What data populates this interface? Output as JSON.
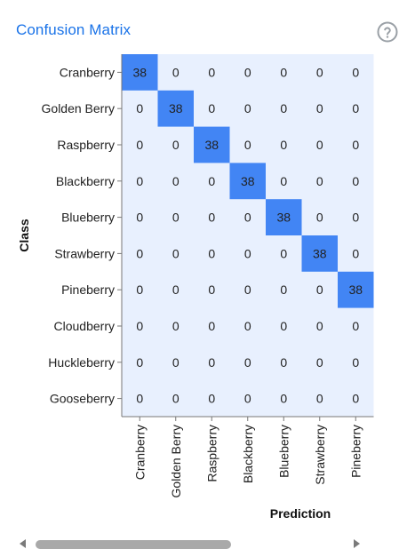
{
  "panel": {
    "title": "Confusion Matrix",
    "help_icon": "help-circle-icon"
  },
  "colors": {
    "cell_background": "#e8f0fe",
    "highlight": "#4285f4",
    "title": "#1a73e8"
  },
  "chart_data": {
    "type": "heatmap",
    "title": "Confusion Matrix",
    "ylabel": "Class",
    "xlabel": "Prediction",
    "rows": [
      "Cranberry",
      "Golden Berry",
      "Raspberry",
      "Blackberry",
      "Blueberry",
      "Strawberry",
      "Pineberry",
      "Cloudberry",
      "Huckleberry",
      "Gooseberry"
    ],
    "columns": [
      "Cranberry",
      "Golden Berry",
      "Raspberry",
      "Blackberry",
      "Blueberry",
      "Strawberry",
      "Pineberry"
    ],
    "values": [
      [
        38,
        0,
        0,
        0,
        0,
        0,
        0
      ],
      [
        0,
        38,
        0,
        0,
        0,
        0,
        0
      ],
      [
        0,
        0,
        38,
        0,
        0,
        0,
        0
      ],
      [
        0,
        0,
        0,
        38,
        0,
        0,
        0
      ],
      [
        0,
        0,
        0,
        0,
        38,
        0,
        0
      ],
      [
        0,
        0,
        0,
        0,
        0,
        38,
        0
      ],
      [
        0,
        0,
        0,
        0,
        0,
        0,
        38
      ],
      [
        0,
        0,
        0,
        0,
        0,
        0,
        0
      ],
      [
        0,
        0,
        0,
        0,
        0,
        0,
        0
      ],
      [
        0,
        0,
        0,
        0,
        0,
        0,
        0
      ]
    ]
  },
  "scrollbar": {
    "position": 0.0,
    "visible_fraction": 0.6
  }
}
